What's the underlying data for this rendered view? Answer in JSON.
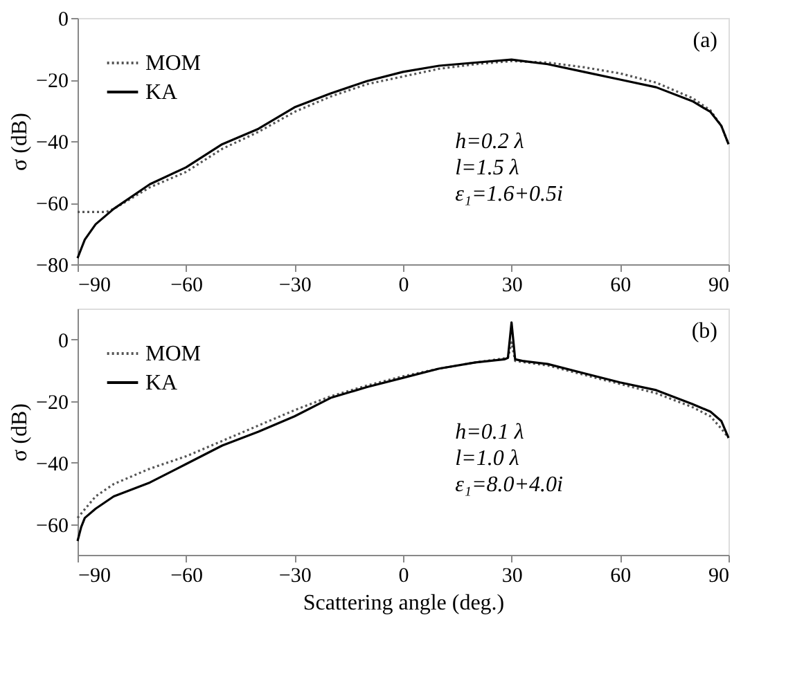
{
  "chart_data": [
    {
      "type": "line",
      "ylabel": "σ (dB)",
      "xlim": [
        -90,
        90
      ],
      "xticks": [
        -90,
        -60,
        -30,
        0,
        30,
        60,
        90
      ],
      "ylim": [
        -80,
        0
      ],
      "yticks": [
        -80,
        -60,
        -40,
        -20,
        0
      ],
      "grid": false,
      "legend": "top left",
      "marker": "none",
      "annotations": [
        "(a)",
        "h=0.2 λ",
        "l=1.5 λ",
        "ε₁=1.6+0.5i"
      ],
      "series": [
        {
          "name": "MOM",
          "color": "#555555",
          "line_style": "dotted",
          "x": [
            -90,
            -82,
            -80,
            -70,
            -60,
            -50,
            -40,
            -30,
            -20,
            -10,
            0,
            10,
            20,
            30,
            40,
            50,
            60,
            70,
            80,
            85,
            88,
            90
          ],
          "values": [
            -63,
            -63,
            -62,
            -55,
            -50,
            -42.5,
            -37,
            -30.5,
            -25.5,
            -21.5,
            -19,
            -16.5,
            -15,
            -14,
            -14.5,
            -16,
            -18,
            -21,
            -26,
            -30,
            -35,
            -41
          ]
        },
        {
          "name": "KA",
          "color": "#000000",
          "line_style": "solid",
          "x": [
            -90,
            -89,
            -88,
            -85,
            -80,
            -70,
            -60,
            -50,
            -40,
            -30,
            -20,
            -10,
            0,
            10,
            20,
            30,
            40,
            50,
            60,
            70,
            80,
            85,
            88,
            90
          ],
          "values": [
            -78,
            -75,
            -72,
            -67,
            -62,
            -54,
            -48.5,
            -41,
            -36,
            -29,
            -24.5,
            -20.5,
            -17.5,
            -15.5,
            -14.5,
            -13.5,
            -15,
            -17.5,
            -20,
            -22.5,
            -27,
            -30.5,
            -35,
            -41
          ]
        }
      ]
    },
    {
      "type": "line",
      "xlabel": "Scattering angle (deg.)",
      "ylabel": "σ (dB)",
      "xlim": [
        -90,
        90
      ],
      "xticks": [
        -90,
        -60,
        -30,
        0,
        30,
        60,
        90
      ],
      "ylim": [
        -70,
        10
      ],
      "yticks": [
        -60,
        -40,
        -20,
        0
      ],
      "grid": false,
      "legend": "top left",
      "marker": "none",
      "annotations": [
        "(b)",
        "h=0.1 λ",
        "l=1.0 λ",
        "ε₁=8.0+4.0i"
      ],
      "series": [
        {
          "name": "MOM",
          "color": "#555555",
          "line_style": "dotted",
          "x": [
            -90,
            -85,
            -80,
            -70,
            -60,
            -50,
            -40,
            -30,
            -20,
            -10,
            0,
            10,
            20,
            29,
            30,
            31,
            40,
            50,
            60,
            70,
            80,
            85,
            88,
            90
          ],
          "values": [
            -58,
            -51,
            -47,
            -42,
            -38,
            -33,
            -28,
            -23,
            -18.5,
            -15,
            -12,
            -9.5,
            -7.5,
            -6,
            -1,
            -7,
            -8.5,
            -11.5,
            -14.5,
            -17.5,
            -22,
            -25,
            -29,
            -32
          ]
        },
        {
          "name": "KA",
          "color": "#000000",
          "line_style": "solid",
          "x": [
            -90,
            -89,
            -88,
            -85,
            -80,
            -70,
            -60,
            -50,
            -40,
            -30,
            -20,
            -10,
            0,
            10,
            20,
            28,
            29,
            30,
            31,
            33,
            40,
            50,
            60,
            70,
            80,
            85,
            88,
            90
          ],
          "values": [
            -65.5,
            -61,
            -58,
            -55,
            -51,
            -46.5,
            -40.5,
            -34.5,
            -30,
            -25,
            -19,
            -15.5,
            -12.5,
            -9.5,
            -7.5,
            -6.5,
            -6,
            5.5,
            -6.5,
            -7,
            -8,
            -11,
            -14,
            -16.5,
            -21,
            -23.5,
            -26.5,
            -32
          ]
        }
      ]
    }
  ]
}
